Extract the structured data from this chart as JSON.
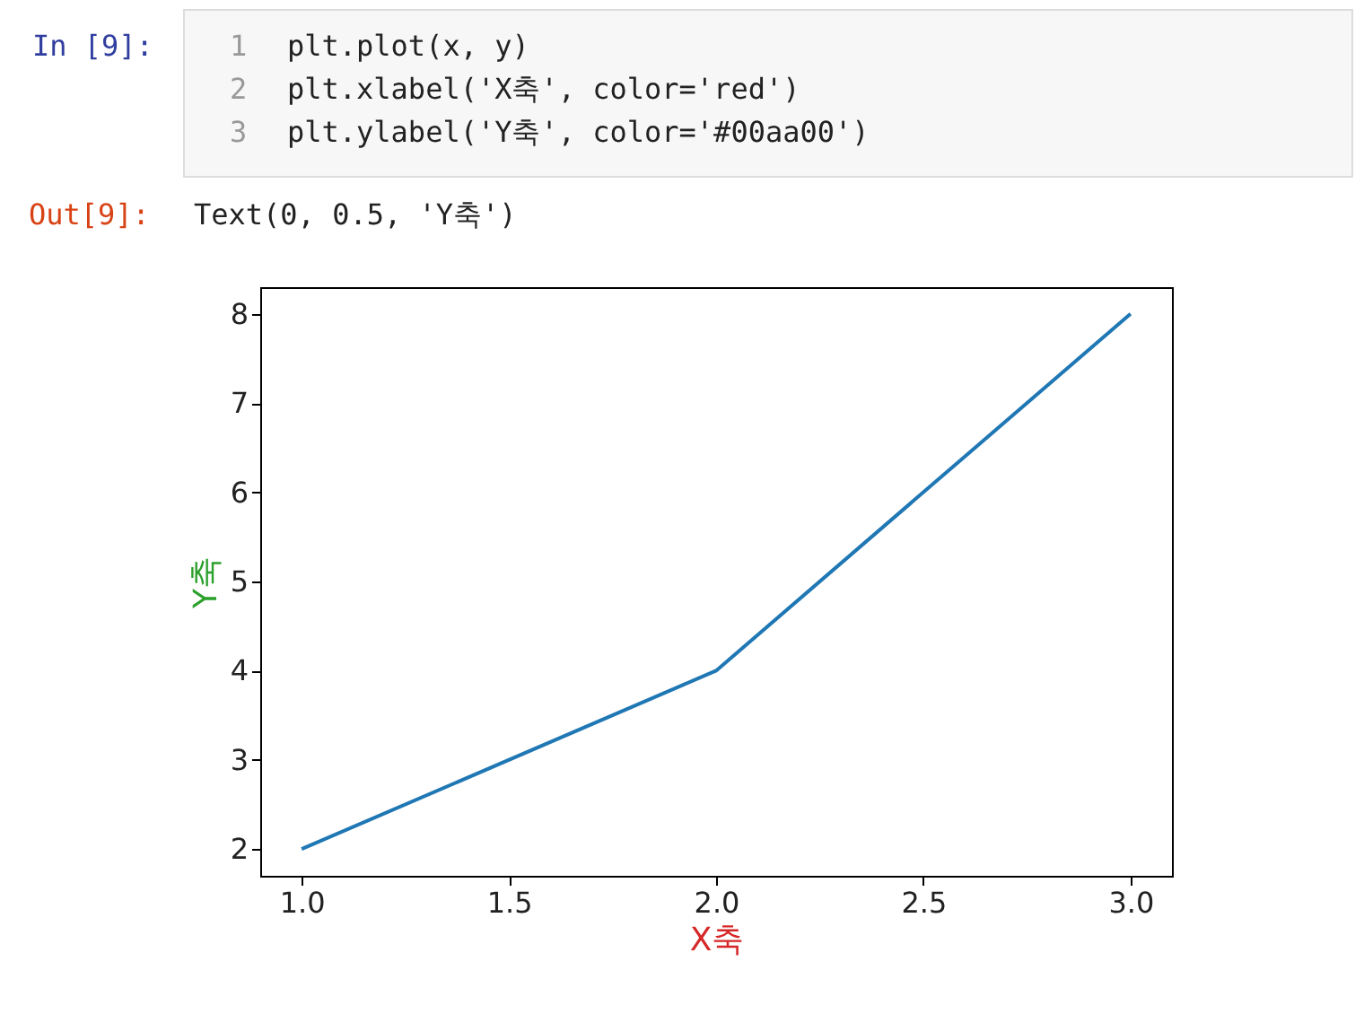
{
  "chart_data": {
    "type": "line",
    "xlabel": "X축",
    "ylabel": "Y축",
    "x": [
      1,
      2,
      3
    ],
    "series": [
      {
        "color": "#1f77b4",
        "values": [
          2,
          4,
          8
        ]
      }
    ],
    "xlim": [
      0.9,
      3.1
    ],
    "ylim": [
      1.7,
      8.3
    ],
    "xticks": [
      {
        "value": 1,
        "label": "1.0"
      },
      1.5,
      {
        "value": 2,
        "label": "2.0"
      },
      2.5,
      {
        "value": 3,
        "label": "3.0"
      }
    ],
    "yticks": [
      2,
      3,
      4,
      5,
      6,
      7,
      8
    ],
    "grid": false,
    "marker": "none",
    "line_style": "solid",
    "annotations": [
      "In [9]:",
      "1",
      "2",
      "3",
      "plt.plot(x, y)",
      "plt.xlabel('X축', color='red')",
      "plt.ylabel('Y축', color='#00aa00')",
      "Out[9]:",
      "Text(0, 0.5, 'Y축')"
    ]
  }
}
